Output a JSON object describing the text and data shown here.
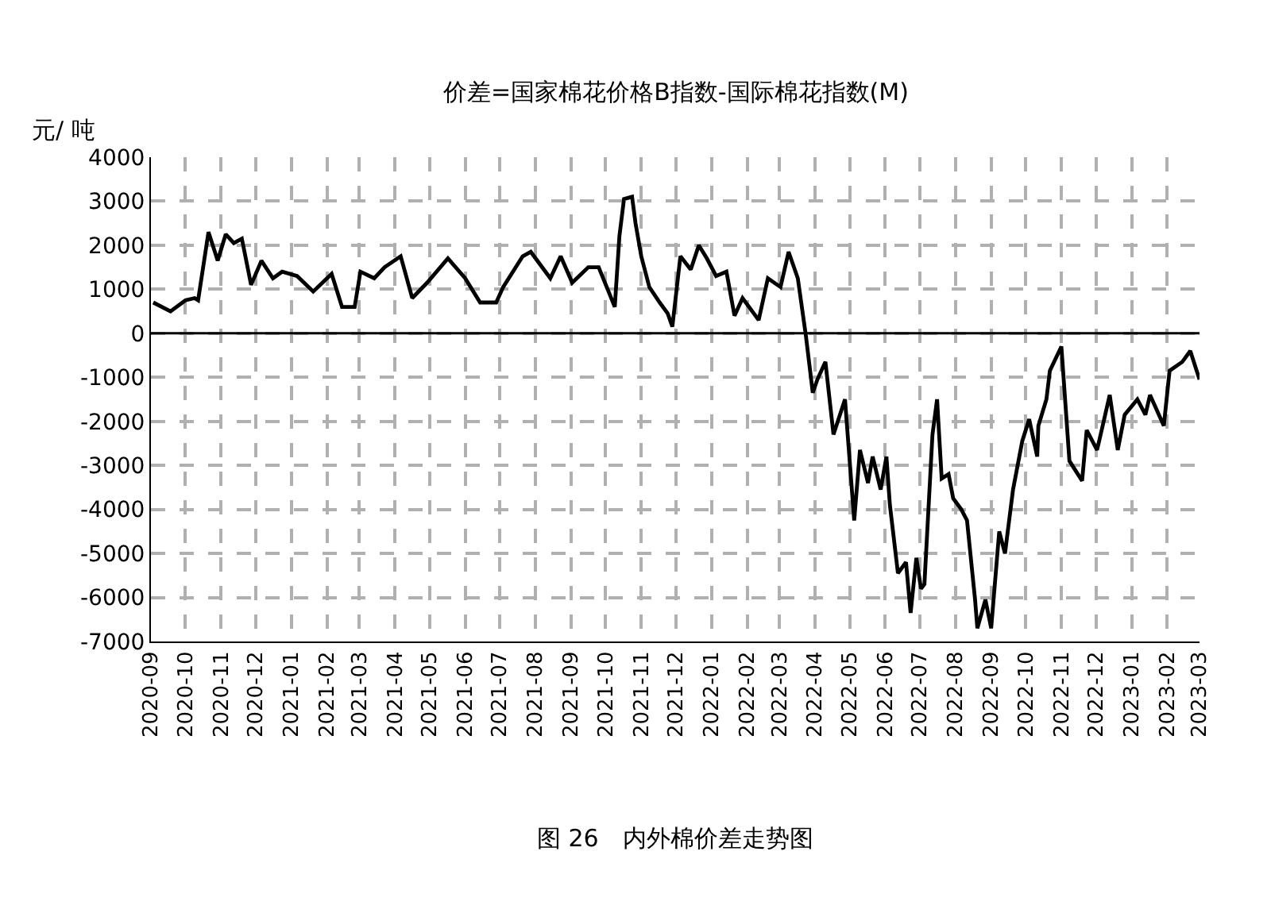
{
  "chart_data": {
    "type": "line",
    "title": "价差=国家棉花价格B指数-国际棉花指数(M)",
    "ylabel": "元/ 吨",
    "annotations": [
      "图 26　内外棉价差走势图"
    ],
    "x": [
      "2020-09-03",
      "2020-09-18",
      "2020-10-01",
      "2020-10-09",
      "2020-10-12",
      "2020-10-21",
      "2020-10-29",
      "2020-11-05",
      "2020-11-12",
      "2020-11-19",
      "2020-11-27",
      "2020-12-06",
      "2020-12-16",
      "2020-12-24",
      "2021-01-06",
      "2021-01-20",
      "2021-02-05",
      "2021-02-14",
      "2021-02-25",
      "2021-03-02",
      "2021-03-14",
      "2021-03-23",
      "2021-04-06",
      "2021-04-16",
      "2021-04-29",
      "2021-05-17",
      "2021-06-01",
      "2021-06-14",
      "2021-06-28",
      "2021-07-04",
      "2021-07-21",
      "2021-07-28",
      "2021-08-14",
      "2021-08-23",
      "2021-09-02",
      "2021-09-16",
      "2021-09-25",
      "2021-10-09",
      "2021-10-13",
      "2021-10-17",
      "2021-10-24",
      "2021-10-27",
      "2021-11-01",
      "2021-11-08",
      "2021-11-17",
      "2021-11-24",
      "2021-11-28",
      "2021-12-05",
      "2021-12-14",
      "2021-12-21",
      "2021-12-28",
      "2022-01-05",
      "2022-01-14",
      "2022-01-21",
      "2022-01-28",
      "2022-02-11",
      "2022-02-19",
      "2022-03-02",
      "2022-03-09",
      "2022-03-17",
      "2022-03-24",
      "2022-03-30",
      "2022-04-03",
      "2022-04-10",
      "2022-04-17",
      "2022-04-27",
      "2022-05-05",
      "2022-05-10",
      "2022-05-17",
      "2022-05-21",
      "2022-05-28",
      "2022-06-02",
      "2022-06-05",
      "2022-06-12",
      "2022-06-19",
      "2022-06-23",
      "2022-06-28",
      "2022-07-02",
      "2022-07-05",
      "2022-07-12",
      "2022-07-16",
      "2022-07-20",
      "2022-07-26",
      "2022-07-30",
      "2022-08-06",
      "2022-08-11",
      "2022-08-18",
      "2022-08-20",
      "2022-08-27",
      "2022-09-01",
      "2022-09-08",
      "2022-09-13",
      "2022-09-20",
      "2022-09-28",
      "2022-10-04",
      "2022-10-11",
      "2022-10-12",
      "2022-10-19",
      "2022-10-22",
      "2022-11-01",
      "2022-11-08",
      "2022-11-19",
      "2022-11-23",
      "2022-12-02",
      "2022-12-06",
      "2022-12-13",
      "2022-12-20",
      "2022-12-26",
      "2023-01-06",
      "2023-01-13",
      "2023-01-17",
      "2023-01-29",
      "2023-02-03",
      "2023-02-14",
      "2023-02-21",
      "2023-03-01"
    ],
    "series": [
      {
        "color": "#000000",
        "values": [
          700,
          500,
          750,
          800,
          750,
          2300,
          1650,
          2250,
          2050,
          2150,
          1100,
          1650,
          1250,
          1400,
          1300,
          950,
          1350,
          600,
          600,
          1400,
          1250,
          1500,
          1750,
          800,
          1150,
          1700,
          1250,
          700,
          700,
          1050,
          1750,
          1850,
          1250,
          1750,
          1150,
          1500,
          1500,
          600,
          2200,
          3050,
          3100,
          2500,
          1750,
          1050,
          700,
          450,
          150,
          1750,
          1450,
          2000,
          1700,
          1300,
          1400,
          400,
          800,
          300,
          1250,
          1050,
          1850,
          1250,
          -50,
          -1350,
          -1050,
          -650,
          -2300,
          -1500,
          -4250,
          -2650,
          -3400,
          -2800,
          -3550,
          -2800,
          -3900,
          -5450,
          -5200,
          -6350,
          -5100,
          -5800,
          -5700,
          -2300,
          -1500,
          -3300,
          -3200,
          -3750,
          -4000,
          -4250,
          -6050,
          -6700,
          -6050,
          -6700,
          -4500,
          -5000,
          -3550,
          -2450,
          -1950,
          -2800,
          -2100,
          -1500,
          -850,
          -300,
          -2900,
          -3350,
          -2200,
          -2650,
          -2200,
          -1400,
          -2650,
          -1850,
          -1500,
          -1850,
          -1400,
          -2100,
          -850,
          -650,
          -400,
          -1050
        ]
      }
    ],
    "xlim": [
      "2020-09-01",
      "2023-03-01"
    ],
    "xticks": [
      "2020-09",
      "2020-10",
      "2020-11",
      "2020-12",
      "2021-01",
      "2021-02",
      "2021-03",
      "2021-04",
      "2021-05",
      "2021-06",
      "2021-07",
      "2021-08",
      "2021-09",
      "2021-10",
      "2021-11",
      "2021-12",
      "2022-01",
      "2022-02",
      "2022-03",
      "2022-04",
      "2022-05",
      "2022-06",
      "2022-07",
      "2022-08",
      "2022-09",
      "2022-10",
      "2022-11",
      "2022-12",
      "2023-01",
      "2023-02",
      "2023-03"
    ],
    "ylim": [
      -7000,
      4000
    ],
    "yticks": [
      -7000,
      -6000,
      -5000,
      -4000,
      -3000,
      -2000,
      -1000,
      0,
      1000,
      2000,
      3000,
      4000
    ],
    "ref_lines": [
      {
        "axis": "y",
        "value": 0,
        "label": null,
        "color": "#000000"
      }
    ],
    "grid": true,
    "marker": "none",
    "line_style": "solid"
  }
}
